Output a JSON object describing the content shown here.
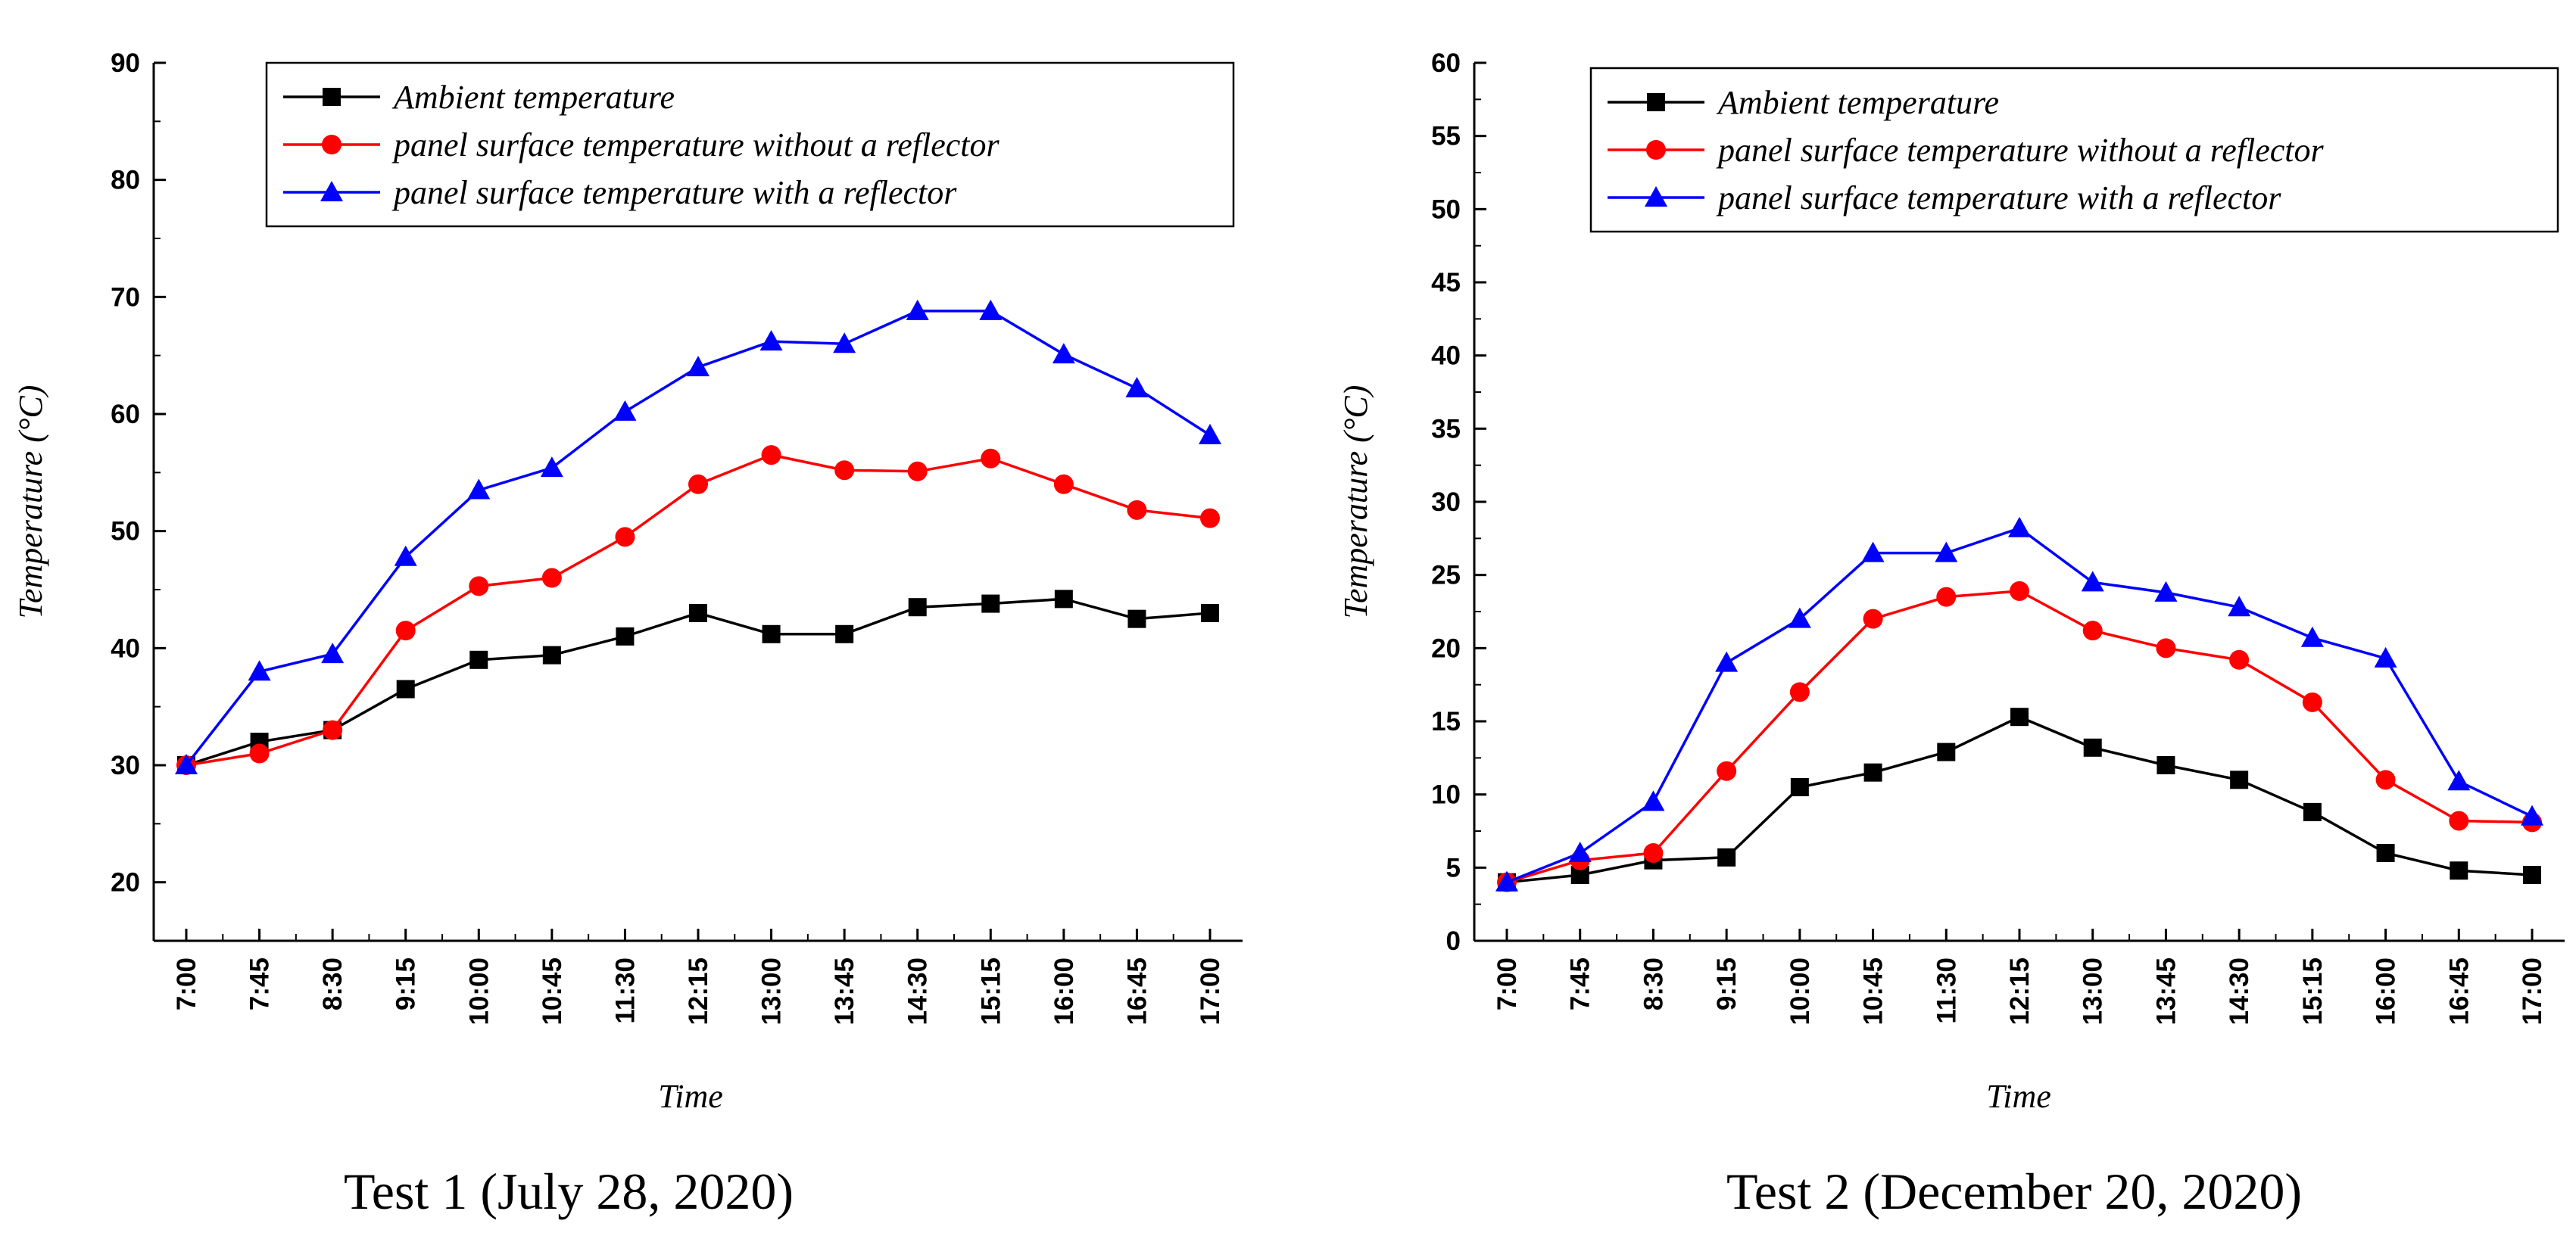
{
  "chart_data": [
    {
      "type": "line",
      "caption": "Test 1 (July 28, 2020)",
      "xlabel": "Time",
      "ylabel": "Temperature (°C)",
      "categories": [
        "7:00",
        "7:45",
        "8:30",
        "9:15",
        "10:00",
        "10:45",
        "11:30",
        "12:15",
        "13:00",
        "13:45",
        "14:30",
        "15:15",
        "16:00",
        "16:45",
        "17:00"
      ],
      "ylim": [
        15,
        90
      ],
      "yticks": [
        20,
        30,
        40,
        50,
        60,
        70,
        80,
        90
      ],
      "grid": false,
      "legend_position": "top-right",
      "series": [
        {
          "name": "Ambient temperature",
          "color": "#000000",
          "marker": "square",
          "values": [
            30,
            32,
            33,
            36.5,
            39,
            39.4,
            41,
            43,
            41.2,
            41.2,
            43.5,
            43.8,
            44.2,
            42.5,
            43
          ]
        },
        {
          "name": "panel surface temperature without a reflector",
          "color": "#ff0000",
          "marker": "circle",
          "values": [
            30,
            31,
            33,
            41.5,
            45.3,
            46,
            49.5,
            54,
            56.5,
            55.2,
            55.1,
            56.2,
            54,
            51.8,
            51.1
          ]
        },
        {
          "name": "panel surface temperature with  a reflector",
          "color": "#0000ff",
          "marker": "triangle",
          "values": [
            30,
            38,
            39.5,
            47.8,
            53.5,
            55.4,
            60.2,
            64,
            66.2,
            66,
            68.8,
            68.8,
            65.1,
            62.2,
            58.2
          ]
        }
      ]
    },
    {
      "type": "line",
      "caption": "Test 2 (December 20, 2020)",
      "xlabel": "Time",
      "ylabel": "Temperature (°C)",
      "categories": [
        "7:00",
        "7:45",
        "8:30",
        "9:15",
        "10:00",
        "10:45",
        "11:30",
        "12:15",
        "13:00",
        "13:45",
        "14:30",
        "15:15",
        "16:00",
        "16:45",
        "17:00"
      ],
      "ylim": [
        0,
        60
      ],
      "yticks": [
        0,
        5,
        10,
        15,
        20,
        25,
        30,
        35,
        40,
        45,
        50,
        55,
        60
      ],
      "grid": false,
      "legend_position": "top-right",
      "series": [
        {
          "name": "Ambient temperature",
          "color": "#000000",
          "marker": "square",
          "values": [
            4,
            4.5,
            5.5,
            5.7,
            10.5,
            11.5,
            12.9,
            15.3,
            13.2,
            12,
            11,
            8.8,
            6,
            4.8,
            4.5
          ]
        },
        {
          "name": "panel surface temperature without a reflector",
          "color": "#ff0000",
          "marker": "circle",
          "values": [
            4,
            5.5,
            6,
            11.6,
            17,
            22,
            23.5,
            23.9,
            21.2,
            20,
            19.2,
            16.3,
            11,
            8.2,
            8.1
          ]
        },
        {
          "name": "panel surface temperature with  a reflector",
          "color": "#0000ff",
          "marker": "triangle",
          "values": [
            4,
            6,
            9.5,
            19,
            22,
            26.5,
            26.5,
            28.2,
            24.5,
            23.8,
            22.8,
            20.7,
            19.3,
            10.9,
            8.5
          ]
        }
      ]
    }
  ]
}
